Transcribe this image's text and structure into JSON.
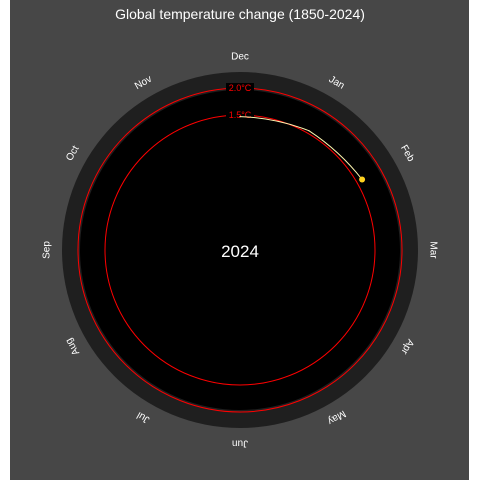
{
  "chart_data": {
    "type": "line",
    "title": "Global temperature change (1850-2024)",
    "center_label": "2024",
    "months": [
      "Jan",
      "Feb",
      "Mar",
      "Apr",
      "May",
      "Jun",
      "Jul",
      "Aug",
      "Sep",
      "Oct",
      "Nov",
      "Dec"
    ],
    "rings": [
      {
        "label": "1.5°C",
        "value": 1.5
      },
      {
        "label": "2.0°C",
        "value": 2.0
      }
    ],
    "radial_range": [
      -1.0,
      2.0
    ],
    "series": [
      {
        "x": [
          "Dec",
          "Jan",
          "Feb"
        ],
        "values": [
          1.47,
          1.55,
          1.61
        ]
      }
    ],
    "colors": {
      "background": "#ffffff",
      "panel": "#474747",
      "dial_outer": "#1f1f1f",
      "dial_inner": "#000000",
      "rings": "#ff0000",
      "text": "#ffffff",
      "series": "#fff5b0",
      "marker": "#ffd21f"
    }
  }
}
